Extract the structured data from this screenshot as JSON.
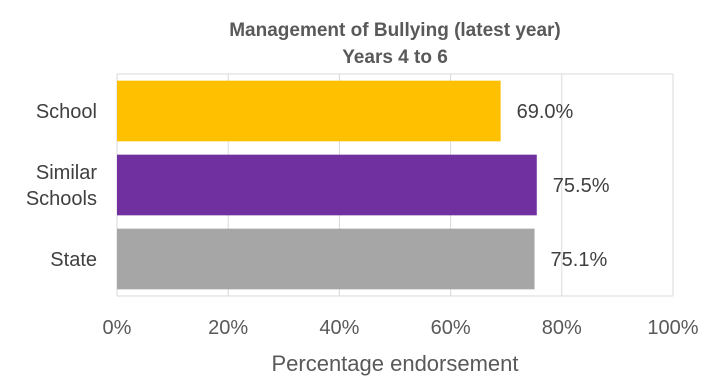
{
  "chart_data": {
    "type": "bar",
    "orientation": "horizontal",
    "title": "Management of Bullying (latest year)",
    "subtitle": "Years 4 to 6",
    "xlabel": "Percentage endorsement",
    "ylabel": "",
    "categories": [
      {
        "lines": [
          "School"
        ]
      },
      {
        "lines": [
          "Similar",
          "Schools"
        ]
      },
      {
        "lines": [
          "State"
        ]
      }
    ],
    "values": [
      69.0,
      75.5,
      75.1
    ],
    "value_labels": [
      "69.0%",
      "75.5%",
      "75.1%"
    ],
    "colors": [
      "#FFC000",
      "#7030A0",
      "#A6A6A6"
    ],
    "xlim": [
      0,
      100
    ],
    "x_ticks": [
      0,
      20,
      40,
      60,
      80,
      100
    ],
    "x_tick_labels": [
      "0%",
      "20%",
      "40%",
      "60%",
      "80%",
      "100%"
    ],
    "grid": true,
    "legend": "none"
  }
}
